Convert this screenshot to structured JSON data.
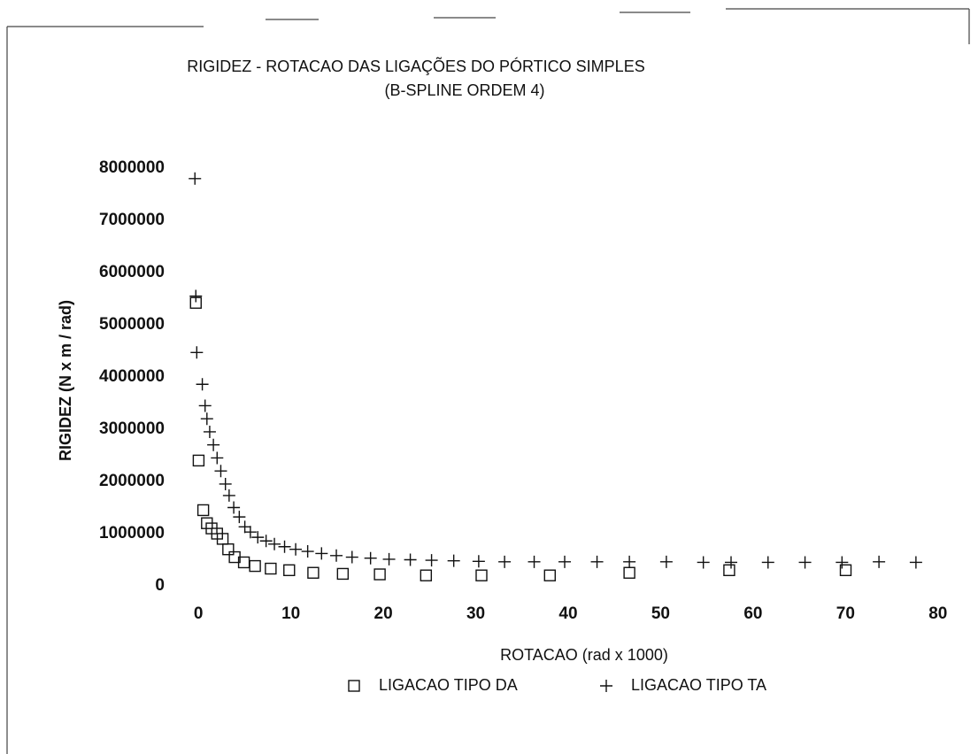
{
  "chart_data": {
    "type": "scatter",
    "title": "RIGIDEZ - ROTACAO DAS LIGAÇÕES DO PÓRTICO SIMPLES",
    "subtitle": "(B-SPLINE ORDEM 4)",
    "x_label": "ROTACAO (rad x 1000)",
    "y_label": "RIGIDEZ (N x m / rad)",
    "xlim": [
      -0.5,
      80.5
    ],
    "ylim": [
      0,
      8000000
    ],
    "xticks": [
      0,
      10,
      20,
      30,
      40,
      50,
      60,
      70,
      80
    ],
    "yticks": [
      0,
      1000000,
      2000000,
      3000000,
      4000000,
      5000000,
      6000000,
      7000000,
      8000000
    ],
    "legend": "bottom",
    "series": [
      {
        "name": "LIGACAO TIPO DA",
        "marker": "square",
        "color": "#111111",
        "x": [
          0.1,
          0.4,
          0.9,
          1.3,
          1.8,
          2.4,
          3.0,
          3.6,
          4.3,
          5.3,
          6.5,
          8.2,
          10.2,
          12.8,
          16,
          20,
          25,
          31,
          38.4,
          47,
          57.8,
          70.4
        ],
        "values": [
          5420000,
          2400000,
          1450000,
          1200000,
          1100000,
          1000000,
          900000,
          700000,
          550000,
          450000,
          380000,
          330000,
          300000,
          250000,
          230000,
          220000,
          200000,
          200000,
          200000,
          250000,
          300000,
          300000
        ]
      },
      {
        "name": "LIGACAO TIPO TA",
        "marker": "plus",
        "color": "#111111",
        "x": [
          0,
          0.1,
          0.2,
          0.8,
          1.1,
          1.3,
          1.6,
          2.0,
          2.4,
          2.8,
          3.3,
          3.7,
          4.2,
          4.8,
          5.4,
          6,
          6.8,
          7.7,
          8.6,
          9.7,
          10.9,
          12.2,
          13.7,
          15.3,
          17,
          19,
          21,
          23.3,
          25.6,
          28,
          30.7,
          33.5,
          36.7,
          40,
          43.5,
          47,
          51,
          55,
          58,
          62,
          66,
          70,
          74,
          78
        ],
        "values": [
          7800000,
          5550000,
          4470000,
          3860000,
          3450000,
          3200000,
          2950000,
          2700000,
          2450000,
          2200000,
          1950000,
          1730000,
          1500000,
          1320000,
          1130000,
          1030000,
          930000,
          860000,
          800000,
          750000,
          700000,
          660000,
          620000,
          580000,
          550000,
          530000,
          510000,
          500000,
          490000,
          480000,
          470000,
          460000,
          460000,
          460000,
          460000,
          460000,
          460000,
          450000,
          450000,
          450000,
          450000,
          450000,
          460000,
          450000
        ]
      }
    ]
  }
}
